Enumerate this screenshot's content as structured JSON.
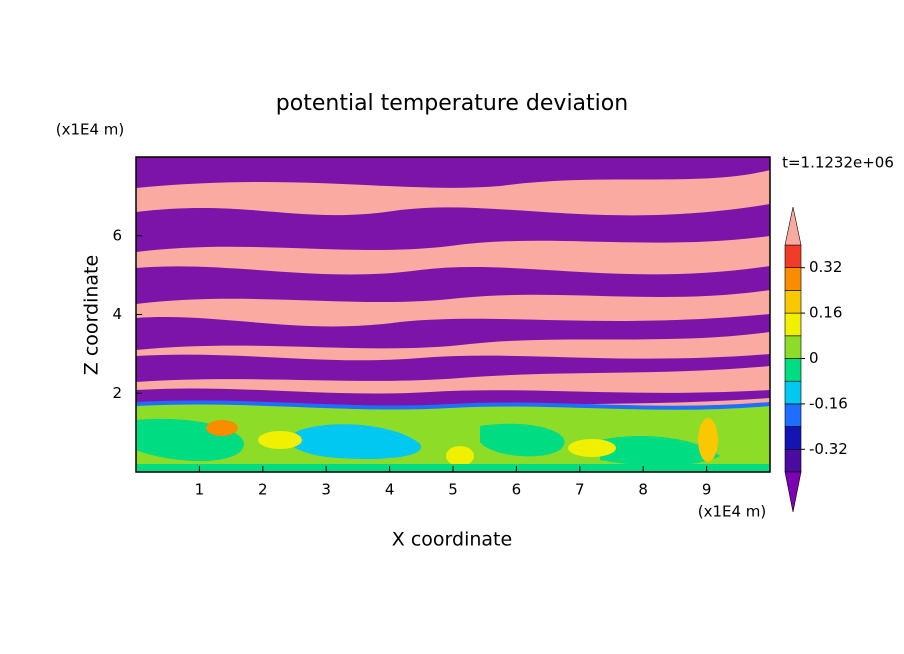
{
  "chart_data": {
    "type": "contour",
    "title": "potential temperature deviation",
    "x_label": "X coordinate",
    "y_label": "Z coordinate",
    "x_unit": "(x1E4 m)",
    "y_unit": "(x1E4 m)",
    "annotation": "t=1.1232e+06",
    "xlim": [
      0,
      10
    ],
    "xticks": [
      1,
      2,
      3,
      4,
      5,
      6,
      7,
      8,
      9
    ],
    "ylim": [
      0,
      8
    ],
    "yticks": [
      2,
      4,
      6
    ],
    "colorbar": {
      "clim": [
        -0.4,
        0.4
      ],
      "ticks": [
        -0.32,
        -0.16,
        0,
        0.16,
        0.32
      ],
      "colors": [
        "#4b0aa0",
        "#1414b4",
        "#1e6eff",
        "#00c8f0",
        "#00dc82",
        "#8cdc28",
        "#f0f000",
        "#fac800",
        "#fa8c00",
        "#f03c28"
      ],
      "under_color": "#7d00b4",
      "over_color": "#faaaa0"
    }
  }
}
